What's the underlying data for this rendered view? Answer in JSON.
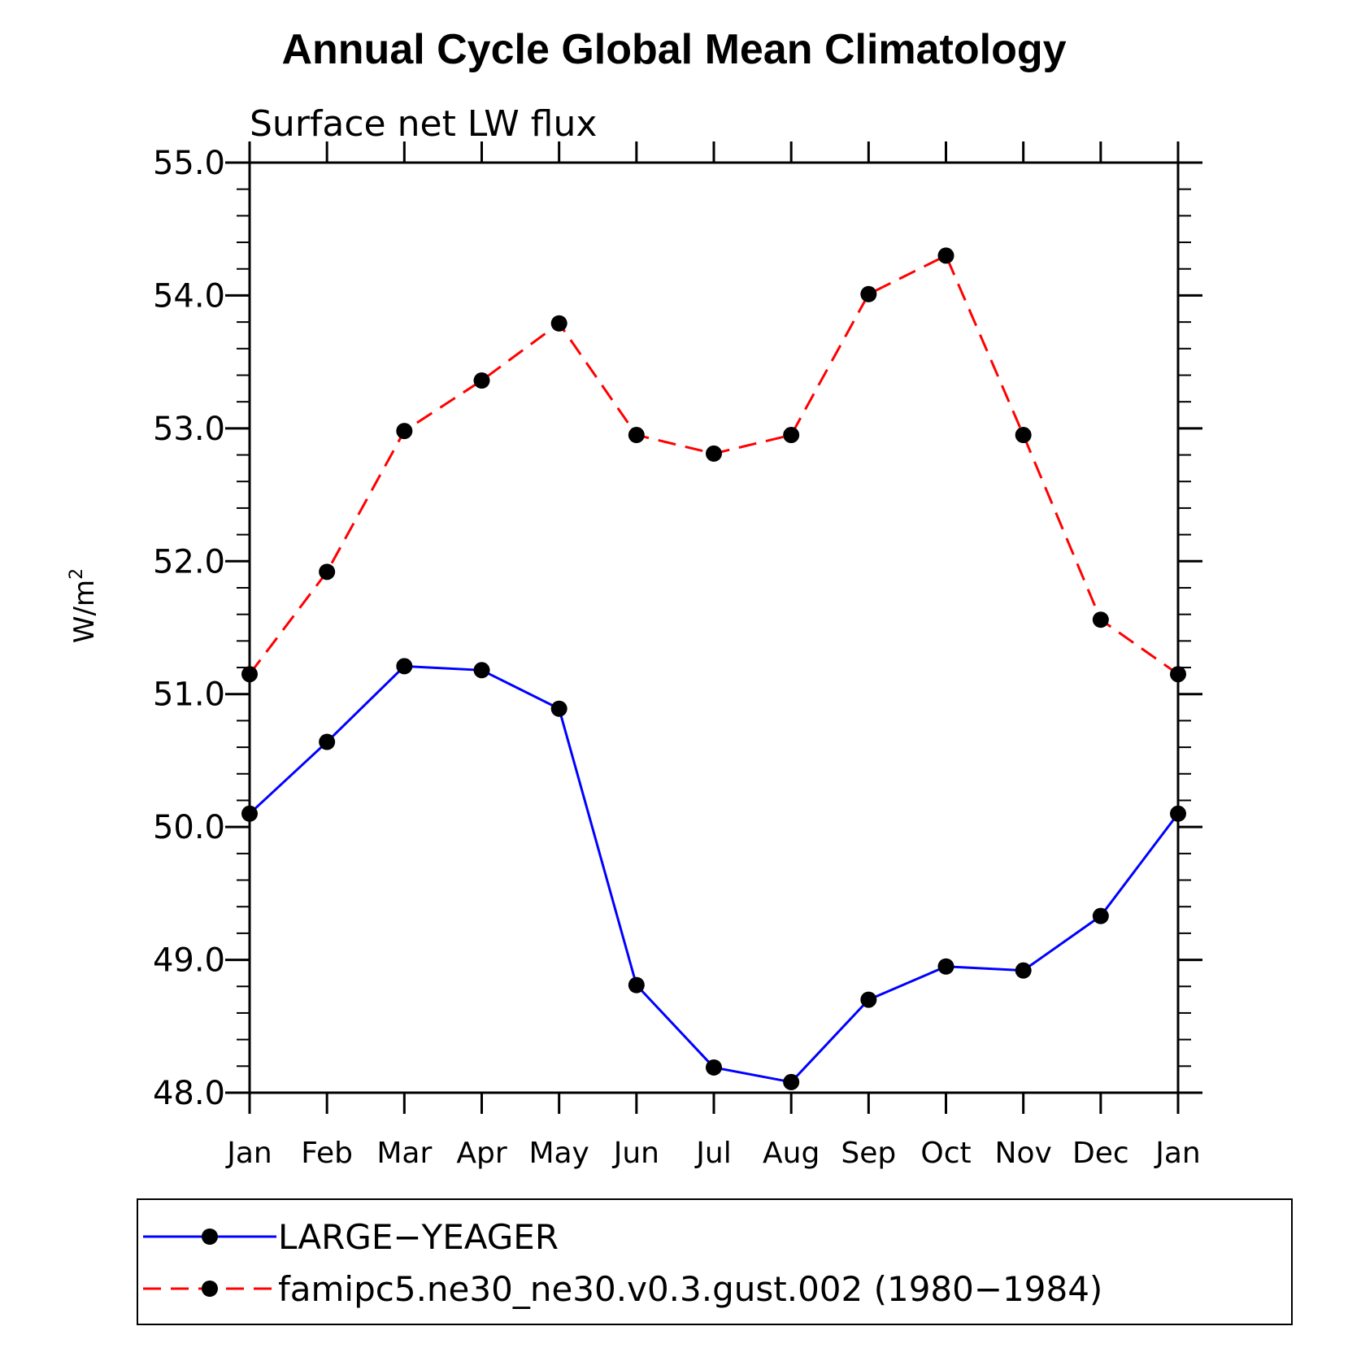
{
  "chart_data": {
    "type": "line",
    "title": "Annual Cycle Global Mean Climatology",
    "subtitle": "Surface net LW flux",
    "ylabel_base": "W/m",
    "ylabel_sup": "2",
    "ylim": [
      48.0,
      55.0
    ],
    "yticks": [
      "48.0",
      "49.0",
      "50.0",
      "51.0",
      "52.0",
      "53.0",
      "54.0",
      "55.0"
    ],
    "ytick_values": [
      48,
      49,
      50,
      51,
      52,
      53,
      54,
      55
    ],
    "categories": [
      "Jan",
      "Feb",
      "Mar",
      "Apr",
      "May",
      "Jun",
      "Jul",
      "Aug",
      "Sep",
      "Oct",
      "Nov",
      "Dec",
      "Jan"
    ],
    "series": [
      {
        "name": "LARGE−YEAGER",
        "color": "#0000ff",
        "dash": "solid",
        "values": [
          50.1,
          50.64,
          51.21,
          51.18,
          50.89,
          48.81,
          48.19,
          48.08,
          48.7,
          48.95,
          48.92,
          49.33,
          50.1
        ]
      },
      {
        "name": "famipc5.ne30_ne30.v0.3.gust.002 (1980−1984)",
        "color": "#ff0000",
        "dash": "dashed",
        "values": [
          51.15,
          51.92,
          52.98,
          53.36,
          53.79,
          52.95,
          52.81,
          52.95,
          54.01,
          54.3,
          52.95,
          51.56,
          51.15
        ]
      }
    ],
    "marker_color": "#000000",
    "legend_position": "bottom"
  }
}
